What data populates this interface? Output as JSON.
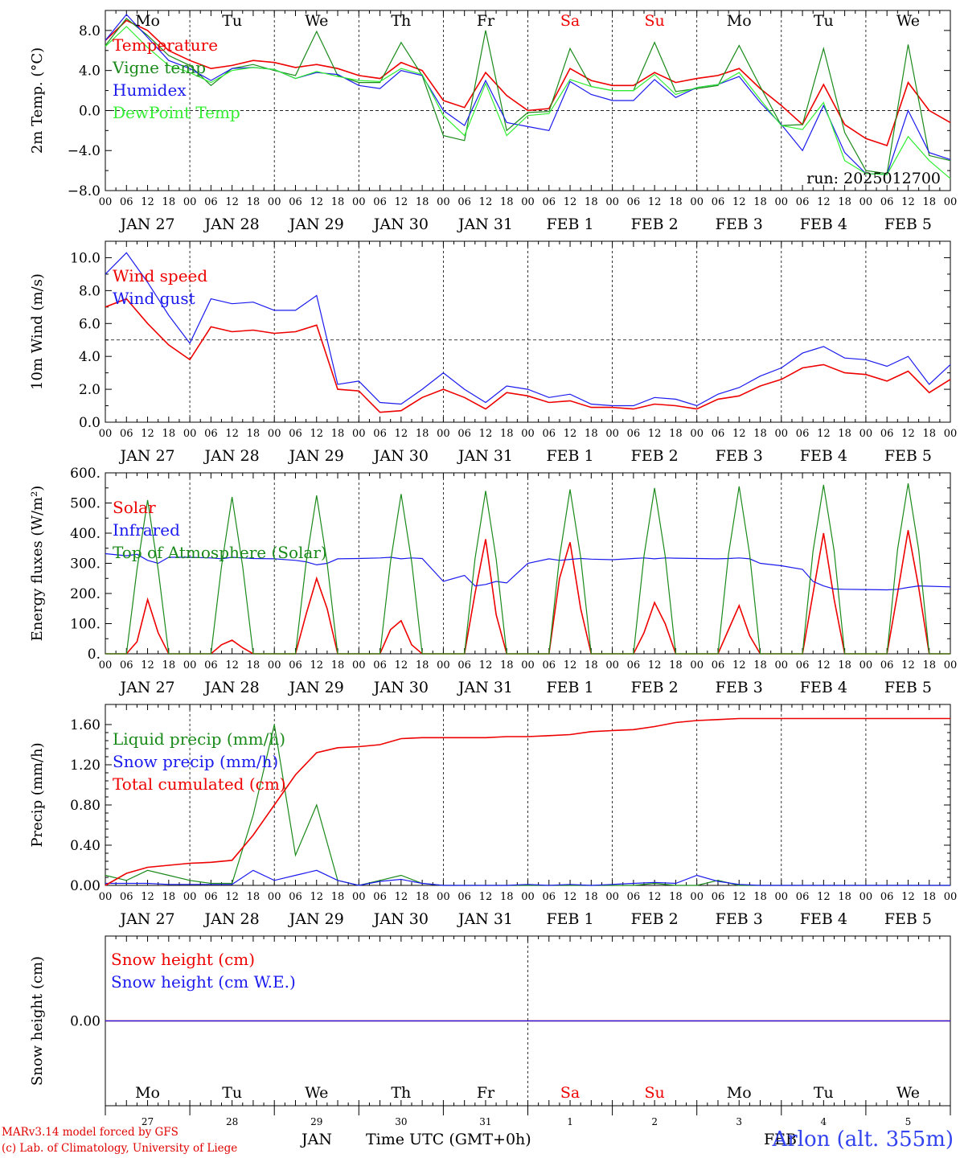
{
  "footer": {
    "model_line": "MARv3.14 model forced by GFS",
    "credit_line": "(c) Lab. of Climatology, University of Liege",
    "month_label": "JAN",
    "month_label_2": "FEB",
    "axis_title": "Time UTC (GMT+0h)",
    "station": "Arlon (alt. 355m)"
  },
  "colors": {
    "red": "#ee0000",
    "green": "#1a8a1a",
    "blue": "#1a1aee",
    "lightgreen": "#33ee33",
    "weekend": "#ee0000"
  },
  "timeline": {
    "start": "2025-01-27T00:00Z",
    "days": 10,
    "hour_ticks": [
      "00",
      "06",
      "12",
      "18"
    ],
    "end_tick": "00",
    "day_labels": [
      "JAN 27",
      "JAN 28",
      "JAN 29",
      "JAN 30",
      "JAN 31",
      "FEB 1",
      "FEB 2",
      "FEB 3",
      "FEB 4",
      "FEB 5"
    ],
    "weekdays": [
      "Mo",
      "Tu",
      "We",
      "Th",
      "Fr",
      "Sa",
      "Su",
      "Mo",
      "Tu",
      "We"
    ],
    "weekend_flags": [
      false,
      false,
      false,
      false,
      false,
      true,
      true,
      false,
      false,
      false
    ],
    "day_numbers": [
      "27",
      "28",
      "29",
      "30",
      "31",
      "1",
      "2",
      "3",
      "4",
      "5"
    ]
  },
  "chart_data": [
    {
      "type": "line",
      "ylabel": "2m Temp. (°C)",
      "ylim": [
        -8,
        10
      ],
      "yticks": [
        -8,
        -4,
        0,
        4,
        8
      ],
      "ytick_labels": [
        "−8.0",
        "−4.0",
        "0.0",
        "4.0",
        "8.0"
      ],
      "reference_line": 0,
      "annotation": "run: 2025012700",
      "show_weekdays": true,
      "x": [
        0,
        6,
        12,
        18,
        24,
        30,
        36,
        42,
        48,
        54,
        60,
        66,
        72,
        78,
        84,
        90,
        96,
        102,
        108,
        114,
        120,
        126,
        132,
        138,
        144,
        150,
        156,
        162,
        168,
        174,
        180,
        186,
        192,
        198,
        204,
        210,
        216,
        222,
        228,
        234,
        240
      ],
      "series": [
        {
          "name": "Temperature",
          "color": "red",
          "values": [
            7,
            9,
            8,
            6,
            5,
            4.2,
            4.5,
            5,
            4.8,
            4.3,
            4.6,
            4.2,
            3.5,
            3.2,
            4.8,
            4,
            1,
            0.3,
            3.8,
            1.5,
            0,
            0.2,
            4.2,
            3,
            2.5,
            2.5,
            3.8,
            2.8,
            3.2,
            3.5,
            4.2,
            2.2,
            0.5,
            -1.4,
            2.6,
            -1.4,
            -2.8,
            -3.5,
            2.8,
            0,
            -1.2
          ]
        },
        {
          "name": "Vigne temp",
          "color": "green",
          "values": [
            6.5,
            9.2,
            7.5,
            5.5,
            4.5,
            2.5,
            4.2,
            4.6,
            4,
            3.5,
            7.9,
            3.5,
            2.8,
            2.8,
            6.8,
            3.5,
            -2.5,
            -3,
            8,
            -2,
            -0.2,
            -0.1,
            6.2,
            2.4,
            2,
            2,
            6.8,
            1.9,
            2.2,
            2.5,
            6.5,
            2.4,
            -1.5,
            -1.4,
            6.2,
            -2.2,
            -6,
            -6.3,
            6.6,
            -4.5,
            -5
          ]
        },
        {
          "name": "Humidex",
          "color": "blue",
          "values": [
            7,
            9.6,
            7.3,
            5,
            4.2,
            3,
            4.2,
            4.3,
            4.1,
            3.2,
            3.8,
            3.6,
            2.5,
            2.2,
            4,
            3.5,
            0,
            -1.5,
            3,
            -1.2,
            -1.6,
            -2,
            2.9,
            1.6,
            1,
            1,
            3.1,
            1.3,
            2.3,
            2.6,
            3.4,
            0.8,
            -1.4,
            -4,
            0.5,
            -4.2,
            -6.3,
            -6.4,
            0,
            -4.2,
            -4.9
          ]
        },
        {
          "name": "DewPoint Temp",
          "color": "lightgreen",
          "values": [
            6.4,
            8.4,
            6.3,
            4.5,
            3.8,
            2.8,
            4,
            4.3,
            4.1,
            3.2,
            3.9,
            3.4,
            3,
            2.9,
            4.2,
            3.6,
            -0.5,
            -2.5,
            2.7,
            -2.5,
            -0.5,
            -0.3,
            3.1,
            2.4,
            2,
            2,
            3.6,
            1.6,
            2.3,
            2.6,
            3.8,
            1.1,
            -1.5,
            -1.9,
            0.8,
            -5,
            -6.3,
            -6.4,
            -2.6,
            -5,
            -6.8
          ]
        }
      ]
    },
    {
      "type": "line",
      "ylabel": "10m Wind (m/s)",
      "ylim": [
        0,
        11
      ],
      "yticks": [
        0,
        2,
        4,
        6,
        8,
        10
      ],
      "ytick_labels": [
        "0.0",
        "2.0",
        "4.0",
        "6.0",
        "8.0",
        "10.0"
      ],
      "reference_line": 5,
      "x": [
        0,
        6,
        12,
        18,
        24,
        30,
        36,
        42,
        48,
        54,
        60,
        66,
        72,
        78,
        84,
        90,
        96,
        102,
        108,
        114,
        120,
        126,
        132,
        138,
        144,
        150,
        156,
        162,
        168,
        174,
        180,
        186,
        192,
        198,
        204,
        210,
        216,
        222,
        228,
        234,
        240
      ],
      "series": [
        {
          "name": "Wind speed",
          "color": "red",
          "values": [
            7,
            7.5,
            6,
            4.7,
            3.8,
            5.8,
            5.5,
            5.6,
            5.4,
            5.5,
            5.9,
            2,
            1.9,
            0.6,
            0.7,
            1.5,
            2,
            1.5,
            0.8,
            1.8,
            1.6,
            1.2,
            1.3,
            0.9,
            0.9,
            0.8,
            1.1,
            1,
            0.8,
            1.4,
            1.6,
            2.2,
            2.6,
            3.3,
            3.5,
            3,
            2.9,
            2.5,
            3.1,
            1.8,
            2.6
          ]
        },
        {
          "name": "Wind gust",
          "color": "blue",
          "values": [
            9,
            10.3,
            8.5,
            6.5,
            4.8,
            7.5,
            7.2,
            7.3,
            6.8,
            6.8,
            7.7,
            2.3,
            2.5,
            1.2,
            1.1,
            2,
            3,
            2,
            1.2,
            2.2,
            2,
            1.5,
            1.7,
            1.1,
            1,
            1,
            1.5,
            1.4,
            1,
            1.7,
            2.1,
            2.8,
            3.3,
            4.2,
            4.6,
            3.9,
            3.8,
            3.4,
            4,
            2.3,
            3.5
          ]
        }
      ]
    },
    {
      "type": "line",
      "ylabel": "Energy fluxes (W/m²)",
      "ylim": [
        0,
        600
      ],
      "yticks": [
        0,
        100,
        200,
        300,
        400,
        500,
        600
      ],
      "ytick_labels": [
        "0.",
        "100.",
        "200.",
        "300.",
        "400.",
        "500.",
        "600."
      ],
      "x": [
        0,
        6,
        9,
        12,
        15,
        18,
        24,
        30,
        33,
        36,
        39,
        42,
        48,
        54,
        57,
        60,
        63,
        66,
        72,
        78,
        81,
        84,
        87,
        90,
        96,
        102,
        105,
        108,
        111,
        114,
        120,
        126,
        129,
        132,
        135,
        138,
        144,
        150,
        153,
        156,
        159,
        162,
        168,
        174,
        177,
        180,
        183,
        186,
        192,
        198,
        201,
        204,
        207,
        210,
        216,
        222,
        225,
        228,
        231,
        234,
        240
      ],
      "series": [
        {
          "name": "Solar",
          "color": "red",
          "values": [
            0,
            0,
            40,
            180,
            70,
            0,
            0,
            0,
            30,
            45,
            20,
            0,
            0,
            0,
            130,
            250,
            150,
            0,
            0,
            0,
            80,
            110,
            30,
            0,
            0,
            0,
            200,
            380,
            130,
            0,
            0,
            0,
            250,
            370,
            150,
            0,
            0,
            0,
            70,
            170,
            100,
            0,
            0,
            0,
            80,
            160,
            60,
            0,
            0,
            0,
            200,
            400,
            180,
            0,
            0,
            0,
            200,
            410,
            220,
            0,
            0
          ]
        },
        {
          "name": "Infrared",
          "color": "blue",
          "values": [
            332,
            325,
            330,
            310,
            300,
            320,
            320,
            318,
            315,
            320,
            318,
            316,
            315,
            310,
            305,
            295,
            300,
            315,
            316,
            318,
            320,
            315,
            318,
            316,
            240,
            260,
            225,
            230,
            240,
            235,
            300,
            315,
            310,
            313,
            316,
            314,
            312,
            316,
            318,
            315,
            318,
            317,
            316,
            315,
            316,
            318,
            315,
            300,
            292,
            280,
            240,
            225,
            215,
            214,
            213,
            212,
            214,
            220,
            225,
            224,
            222
          ]
        },
        {
          "name": "Top of Atmosphere (Solar)",
          "color": "green",
          "values": [
            0,
            0,
            280,
            510,
            280,
            0,
            0,
            0,
            290,
            520,
            290,
            0,
            0,
            0,
            300,
            525,
            300,
            0,
            0,
            0,
            305,
            530,
            305,
            0,
            0,
            0,
            315,
            540,
            315,
            0,
            0,
            0,
            320,
            545,
            320,
            0,
            0,
            0,
            325,
            550,
            325,
            0,
            0,
            0,
            330,
            555,
            330,
            0,
            0,
            0,
            340,
            560,
            340,
            0,
            0,
            0,
            345,
            565,
            345,
            0,
            0
          ]
        }
      ]
    },
    {
      "type": "line",
      "ylabel": "Precip (mm/h)",
      "ylim": [
        0,
        1.8
      ],
      "yticks": [
        0,
        0.4,
        0.8,
        1.2,
        1.6
      ],
      "ytick_labels": [
        "0.00",
        "0.40",
        "0.80",
        "1.20",
        "1.60"
      ],
      "x": [
        0,
        6,
        12,
        18,
        24,
        30,
        36,
        42,
        48,
        54,
        60,
        66,
        72,
        78,
        84,
        90,
        96,
        102,
        108,
        114,
        120,
        126,
        132,
        138,
        144,
        150,
        156,
        162,
        168,
        174,
        180,
        186,
        192,
        198,
        204,
        210,
        216,
        222,
        228,
        234,
        240
      ],
      "series": [
        {
          "name": "Liquid precip (mm/h)",
          "color": "green",
          "values": [
            0.1,
            0.05,
            0.15,
            0.1,
            0.05,
            0.02,
            0.02,
            0.7,
            1.6,
            0.3,
            0.8,
            0.05,
            0,
            0.05,
            0.1,
            0.02,
            0,
            0,
            0,
            0,
            0,
            0,
            0,
            0,
            0,
            0,
            0.02,
            0,
            0,
            0.05,
            0,
            0,
            0,
            0,
            0,
            0,
            0,
            0,
            0,
            0,
            0
          ]
        },
        {
          "name": "Snow precip (mm/h)",
          "color": "blue",
          "values": [
            0.02,
            0.02,
            0.02,
            0.01,
            0.01,
            0.01,
            0.01,
            0.15,
            0.05,
            0.1,
            0.15,
            0.05,
            0,
            0.04,
            0.06,
            0.02,
            0,
            0,
            0,
            0,
            0.01,
            0,
            0.01,
            0,
            0.01,
            0.02,
            0.03,
            0.02,
            0.1,
            0.04,
            0.01,
            0,
            0,
            0,
            0,
            0,
            0,
            0,
            0,
            0,
            0
          ]
        },
        {
          "name": "Total cumulated (cm)",
          "color": "red",
          "values": [
            0,
            0.12,
            0.18,
            0.2,
            0.22,
            0.23,
            0.25,
            0.5,
            0.8,
            1.1,
            1.32,
            1.37,
            1.38,
            1.4,
            1.46,
            1.47,
            1.47,
            1.47,
            1.47,
            1.48,
            1.48,
            1.49,
            1.5,
            1.53,
            1.54,
            1.55,
            1.58,
            1.62,
            1.64,
            1.65,
            1.66,
            1.66,
            1.66,
            1.66,
            1.66,
            1.66,
            1.66,
            1.66,
            1.66,
            1.66,
            1.66
          ]
        }
      ]
    },
    {
      "type": "line",
      "ylabel": "Snow height (cm)",
      "ylim": [
        -1,
        1
      ],
      "yticks": [
        0
      ],
      "ytick_labels": [
        "0.00"
      ],
      "x": [
        0,
        240
      ],
      "series": [
        {
          "name": "Snow height (cm)",
          "color": "red",
          "values": [
            0,
            0
          ]
        },
        {
          "name": "Snow height (cm W.E.)",
          "color": "blue",
          "values": [
            0,
            0
          ]
        }
      ]
    }
  ]
}
